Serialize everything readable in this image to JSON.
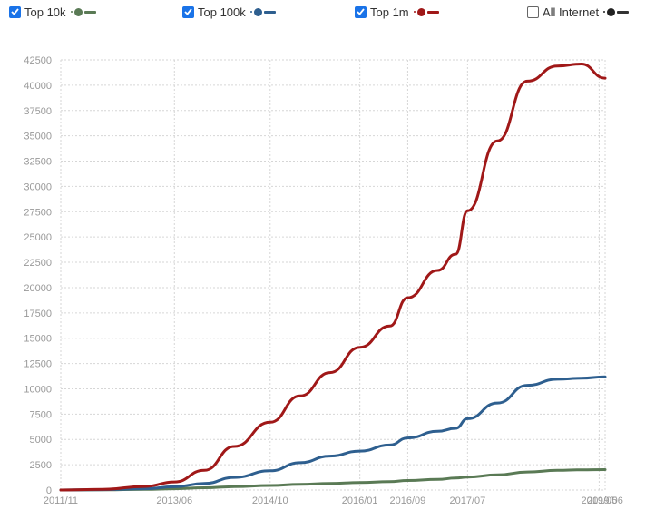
{
  "legend": [
    {
      "label": "Top 10k",
      "checked": true,
      "color": "#5a7a55"
    },
    {
      "label": "Top 100k",
      "checked": true,
      "color": "#2e5f8f"
    },
    {
      "label": "Top 1m",
      "checked": true,
      "color": "#a01818"
    },
    {
      "label": "All Internet",
      "checked": false,
      "color": "#222222"
    }
  ],
  "chart_data": {
    "type": "line",
    "title": "",
    "xlabel": "",
    "ylabel": "",
    "grid": true,
    "legend_position": "top",
    "x_domain": [
      "2011-11",
      "2019-06"
    ],
    "ylim": [
      0,
      42500
    ],
    "y_ticks": [
      0,
      2500,
      5000,
      7500,
      10000,
      12500,
      15000,
      17500,
      20000,
      22500,
      25000,
      27500,
      30000,
      32500,
      35000,
      37500,
      40000,
      42500
    ],
    "x_ticks": [
      {
        "date": "2011-11",
        "label": "2011/11"
      },
      {
        "date": "2013-06",
        "label": "2013/06"
      },
      {
        "date": "2014-10",
        "label": "2014/10"
      },
      {
        "date": "2016-01",
        "label": "2016/01"
      },
      {
        "date": "2016-09",
        "label": "2016/09"
      },
      {
        "date": "2017-07",
        "label": "2017/07"
      },
      {
        "date": "2019-05",
        "label": "2019/05"
      },
      {
        "date": "2019-06",
        "label": "2019/06"
      }
    ],
    "series": [
      {
        "name": "Top 10k",
        "color": "#5a7a55",
        "points": [
          [
            "2011-11",
            0
          ],
          [
            "2012-06",
            20
          ],
          [
            "2013-01",
            60
          ],
          [
            "2013-06",
            130
          ],
          [
            "2013-11",
            220
          ],
          [
            "2014-04",
            330
          ],
          [
            "2014-10",
            450
          ],
          [
            "2015-03",
            560
          ],
          [
            "2015-08",
            650
          ],
          [
            "2016-01",
            740
          ],
          [
            "2016-06",
            830
          ],
          [
            "2016-09",
            940
          ],
          [
            "2017-02",
            1050
          ],
          [
            "2017-05",
            1180
          ],
          [
            "2017-07",
            1280
          ],
          [
            "2017-12",
            1500
          ],
          [
            "2018-05",
            1780
          ],
          [
            "2018-10",
            1950
          ],
          [
            "2019-02",
            2000
          ],
          [
            "2019-06",
            2020
          ]
        ]
      },
      {
        "name": "Top 100k",
        "color": "#2e5f8f",
        "points": [
          [
            "2011-11",
            0
          ],
          [
            "2012-06",
            40
          ],
          [
            "2013-01",
            130
          ],
          [
            "2013-06",
            320
          ],
          [
            "2013-11",
            650
          ],
          [
            "2014-04",
            1250
          ],
          [
            "2014-10",
            1900
          ],
          [
            "2015-03",
            2700
          ],
          [
            "2015-08",
            3350
          ],
          [
            "2016-01",
            3850
          ],
          [
            "2016-06",
            4450
          ],
          [
            "2016-09",
            5150
          ],
          [
            "2017-02",
            5800
          ],
          [
            "2017-05",
            6100
          ],
          [
            "2017-07",
            7050
          ],
          [
            "2017-12",
            8600
          ],
          [
            "2018-05",
            10350
          ],
          [
            "2018-10",
            10950
          ],
          [
            "2019-02",
            11050
          ],
          [
            "2019-06",
            11180
          ]
        ]
      },
      {
        "name": "Top 1m",
        "color": "#a01818",
        "points": [
          [
            "2011-11",
            0
          ],
          [
            "2012-06",
            70
          ],
          [
            "2013-01",
            350
          ],
          [
            "2013-06",
            800
          ],
          [
            "2013-11",
            1950
          ],
          [
            "2014-04",
            4300
          ],
          [
            "2014-10",
            6700
          ],
          [
            "2015-03",
            9300
          ],
          [
            "2015-08",
            11600
          ],
          [
            "2016-01",
            14100
          ],
          [
            "2016-06",
            16200
          ],
          [
            "2016-09",
            19000
          ],
          [
            "2017-02",
            21700
          ],
          [
            "2017-05",
            23300
          ],
          [
            "2017-07",
            27600
          ],
          [
            "2017-12",
            34500
          ],
          [
            "2018-05",
            40400
          ],
          [
            "2018-10",
            41900
          ],
          [
            "2019-02",
            42100
          ],
          [
            "2019-06",
            40700
          ]
        ]
      },
      {
        "name": "All Internet",
        "color": "#222222",
        "visible": false,
        "points": []
      }
    ]
  }
}
